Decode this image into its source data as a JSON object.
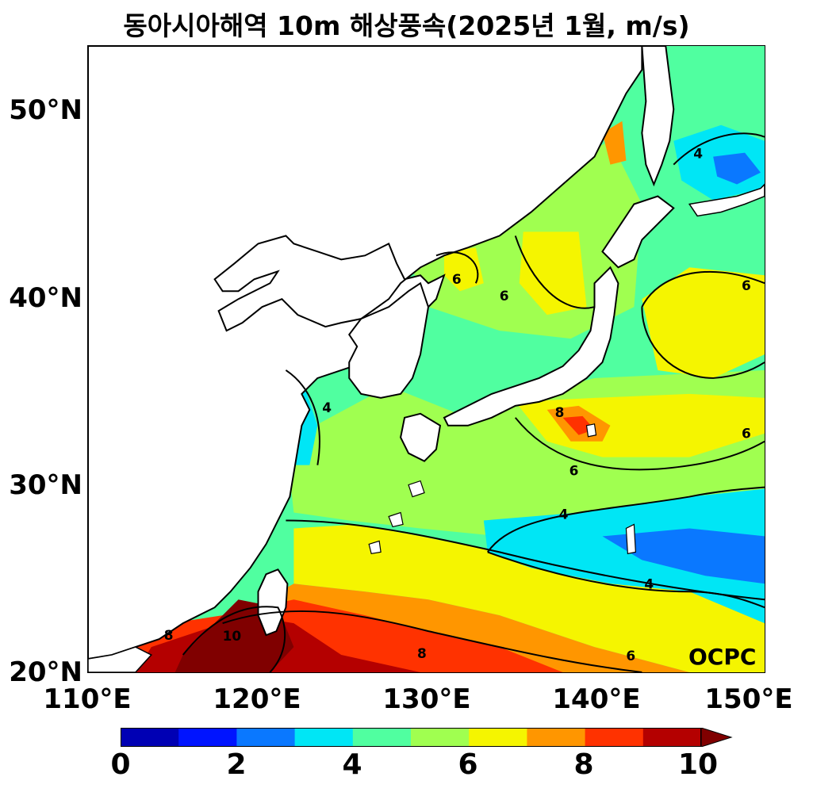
{
  "title": "동아시아해역 10m 해상풍속(2025년 1월, m/s)",
  "map": {
    "lon_range": [
      110,
      150
    ],
    "lat_range": [
      20,
      53.5
    ],
    "lat_ticks": [
      {
        "value": 20,
        "label": "20°N"
      },
      {
        "value": 30,
        "label": "30°N"
      },
      {
        "value": 40,
        "label": "40°N"
      },
      {
        "value": 50,
        "label": "50°N"
      }
    ],
    "lon_ticks": [
      {
        "value": 110,
        "label": "110°E"
      },
      {
        "value": 120,
        "label": "120°E"
      },
      {
        "value": 130,
        "label": "130°E"
      },
      {
        "value": 140,
        "label": "140°E"
      },
      {
        "value": 150,
        "label": "150°E"
      }
    ],
    "contour_labels": [
      "4",
      "6",
      "8",
      "10"
    ],
    "credit": "OCPC"
  },
  "colorbar": {
    "min": 0,
    "max": 10,
    "step": 1,
    "tick_labels": [
      "0",
      "2",
      "4",
      "6",
      "8",
      "10"
    ],
    "colors": [
      "#0000b4",
      "#0014ff",
      "#0a78ff",
      "#00e6f5",
      "#50ffa0",
      "#a0ff50",
      "#f5f500",
      "#ff9600",
      "#ff3200",
      "#b40000",
      "#800000"
    ]
  }
}
